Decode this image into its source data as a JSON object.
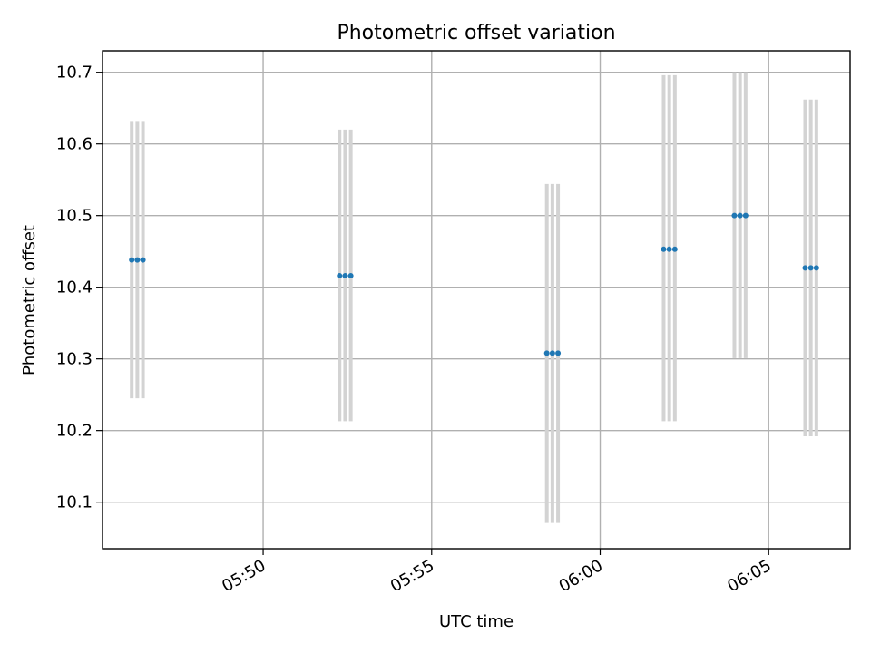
{
  "chart_data": {
    "type": "scatter",
    "title": "Photometric offset variation",
    "xlabel": "UTC time",
    "ylabel": "Photometric offset",
    "x_axis": {
      "kind": "time",
      "range": [
        "05:45:14",
        "06:07:25"
      ],
      "ticks": [
        "05:50",
        "05:55",
        "06:00",
        "06:05"
      ]
    },
    "y_axis": {
      "range": [
        10.035,
        10.73
      ],
      "ticks": [
        "10.1",
        "10.2",
        "10.3",
        "10.4",
        "10.5",
        "10.6",
        "10.7"
      ]
    },
    "grid": true,
    "point_color": "#1f77b4",
    "errorbar_color": "#d3d3d3",
    "groups": [
      {
        "times": [
          "05:46:06",
          "05:46:16",
          "05:46:26"
        ],
        "offset": 10.438,
        "lower": 10.245,
        "upper": 10.632
      },
      {
        "times": [
          "05:52:16",
          "05:52:26",
          "05:52:36"
        ],
        "offset": 10.416,
        "lower": 10.213,
        "upper": 10.62
      },
      {
        "times": [
          "05:58:25",
          "05:58:35",
          "05:58:45"
        ],
        "offset": 10.308,
        "lower": 10.071,
        "upper": 10.544
      },
      {
        "times": [
          "06:01:53",
          "06:02:03",
          "06:02:13"
        ],
        "offset": 10.453,
        "lower": 10.213,
        "upper": 10.696
      },
      {
        "times": [
          "06:03:59",
          "06:04:09",
          "06:04:19"
        ],
        "offset": 10.5,
        "lower": 10.301,
        "upper": 10.7
      },
      {
        "times": [
          "06:06:05",
          "06:06:15",
          "06:06:25"
        ],
        "offset": 10.427,
        "lower": 10.192,
        "upper": 10.662
      }
    ]
  }
}
